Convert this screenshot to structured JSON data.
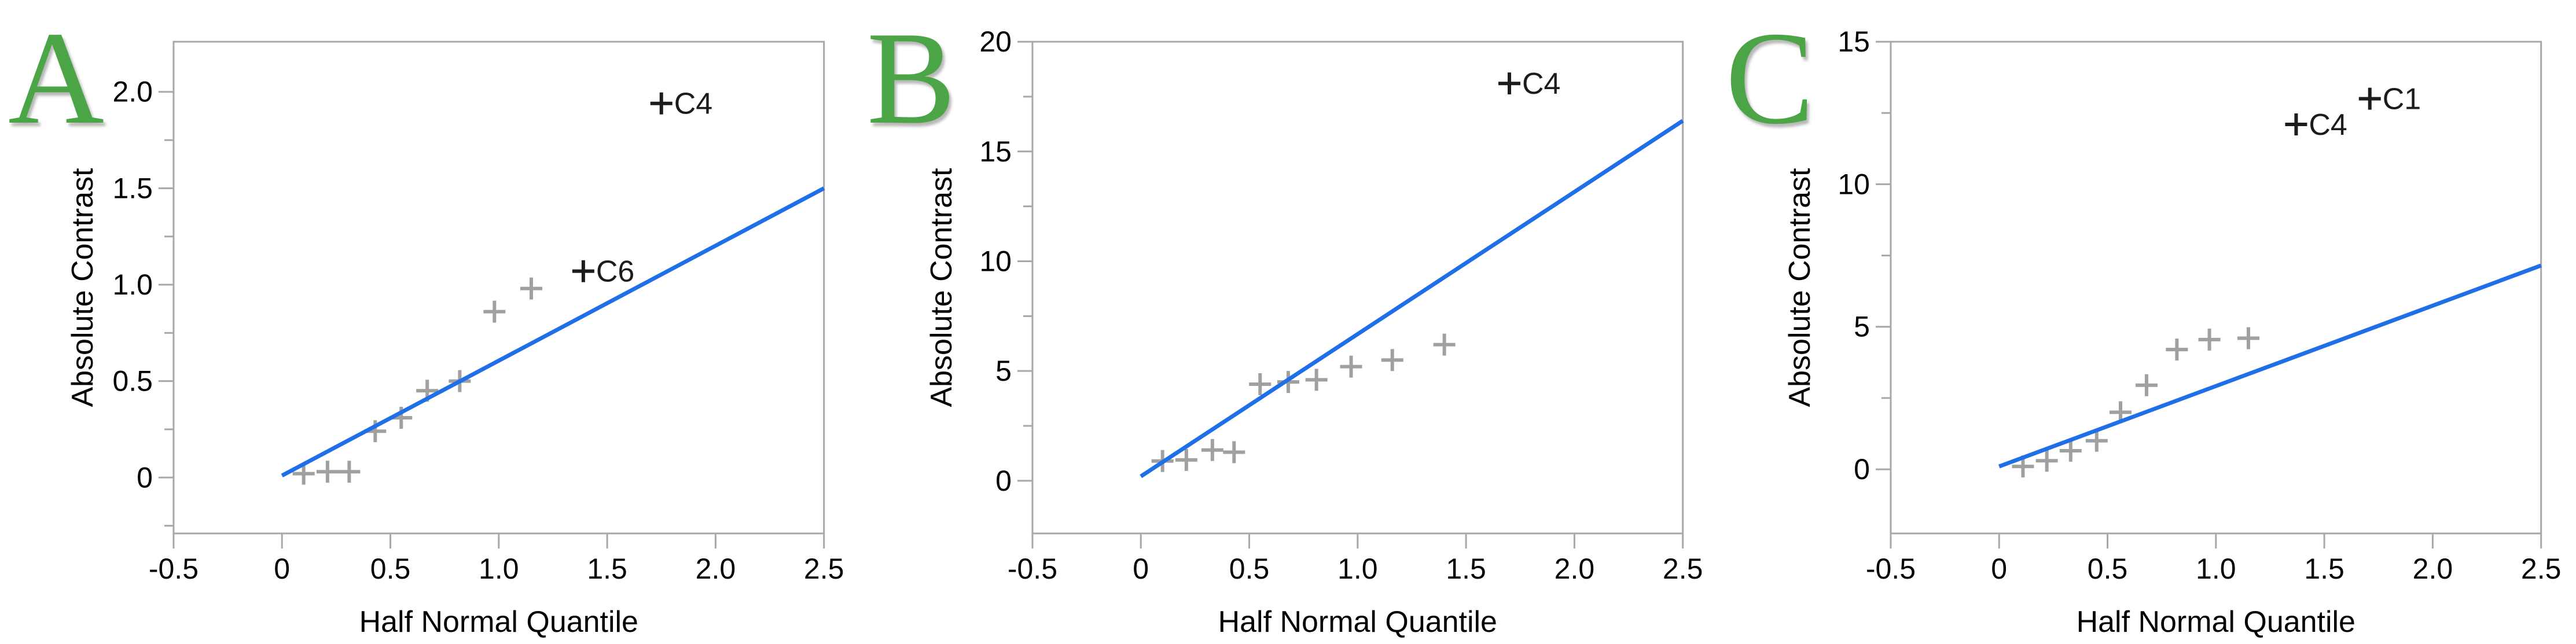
{
  "figure": {
    "colors": {
      "background": "#ffffff",
      "panel_letter_green": "#4ba446",
      "fit_line_blue": "#1e6fe8",
      "marker_gray": "#a0a0a0",
      "marker_labeled_black": "#1c1c1c",
      "axis_gray": "#a8a8a8",
      "tick_text_black": "#000000"
    }
  },
  "chart_data": [
    {
      "type": "scatter",
      "panel_letter": "A",
      "xlabel": "Half Normal Quantile",
      "ylabel": "Absolute Contrast",
      "xlim": [
        -0.5,
        2.5
      ],
      "ylim": [
        -0.29,
        2.26
      ],
      "xticks": [
        -0.5,
        0,
        0.5,
        1.0,
        1.5,
        2.0,
        2.5
      ],
      "xtick_labels": [
        "-0.5",
        "0",
        "0.5",
        "1.0",
        "1.5",
        "2.0",
        "2.5"
      ],
      "yticks": [
        0,
        0.5,
        1.0,
        1.5,
        2.0
      ],
      "ytick_labels": [
        "0",
        "0.5",
        "1.0",
        "1.5",
        "2.0"
      ],
      "yticks_minor": [
        -0.25,
        0.25,
        0.75,
        1.25,
        1.75
      ],
      "grid": "off",
      "points": [
        {
          "x": 0.1,
          "y": 0.02
        },
        {
          "x": 0.21,
          "y": 0.03
        },
        {
          "x": 0.31,
          "y": 0.03
        },
        {
          "x": 0.43,
          "y": 0.24
        },
        {
          "x": 0.55,
          "y": 0.31
        },
        {
          "x": 0.67,
          "y": 0.45
        },
        {
          "x": 0.82,
          "y": 0.5
        },
        {
          "x": 0.98,
          "y": 0.86
        },
        {
          "x": 1.15,
          "y": 0.98
        },
        {
          "x": 1.39,
          "y": 1.07,
          "label": "C6"
        },
        {
          "x": 1.75,
          "y": 1.94,
          "label": "C4"
        }
      ],
      "fit_line": {
        "x1": 0,
        "y1": 0.01,
        "x2": 2.5,
        "y2": 1.5
      }
    },
    {
      "type": "scatter",
      "panel_letter": "B",
      "xlabel": "Half Normal Quantile",
      "ylabel": "Absolute Contrast",
      "xlim": [
        -0.5,
        2.5
      ],
      "ylim": [
        -2.4,
        20
      ],
      "xticks": [
        -0.5,
        0,
        0.5,
        1.0,
        1.5,
        2.0,
        2.5
      ],
      "xtick_labels": [
        "-0.5",
        "0",
        "0.5",
        "1.0",
        "1.5",
        "2.0",
        "2.5"
      ],
      "yticks": [
        0,
        5,
        10,
        15,
        20
      ],
      "ytick_labels": [
        "0",
        "5",
        "10",
        "15",
        "20"
      ],
      "yticks_minor": [
        2.5,
        7.5,
        12.5,
        17.5
      ],
      "grid": "off",
      "points": [
        {
          "x": 0.1,
          "y": 0.9
        },
        {
          "x": 0.21,
          "y": 0.95
        },
        {
          "x": 0.33,
          "y": 1.4
        },
        {
          "x": 0.43,
          "y": 1.3
        },
        {
          "x": 0.55,
          "y": 4.4
        },
        {
          "x": 0.68,
          "y": 4.5
        },
        {
          "x": 0.81,
          "y": 4.6
        },
        {
          "x": 0.97,
          "y": 5.2
        },
        {
          "x": 1.16,
          "y": 5.5
        },
        {
          "x": 1.4,
          "y": 6.2
        },
        {
          "x": 1.7,
          "y": 18.1,
          "label": "C4"
        }
      ],
      "fit_line": {
        "x1": 0,
        "y1": 0.2,
        "x2": 2.5,
        "y2": 16.4
      }
    },
    {
      "type": "scatter",
      "panel_letter": "C",
      "xlabel": "Half Normal Quantile",
      "ylabel": "Absolute Contrast",
      "xlim": [
        -0.5,
        2.5
      ],
      "ylim": [
        -2.25,
        15
      ],
      "xticks": [
        -0.5,
        0,
        0.5,
        1.0,
        1.5,
        2.0,
        2.5
      ],
      "xtick_labels": [
        "-0.5",
        "0",
        "0.5",
        "1.0",
        "1.5",
        "2.0",
        "2.5"
      ],
      "yticks": [
        0,
        5,
        10,
        15
      ],
      "ytick_labels": [
        "0",
        "5",
        "10",
        "15"
      ],
      "yticks_minor": [
        2.5,
        7.5,
        12.5
      ],
      "grid": "off",
      "points": [
        {
          "x": 0.11,
          "y": 0.1
        },
        {
          "x": 0.22,
          "y": 0.3
        },
        {
          "x": 0.33,
          "y": 0.65
        },
        {
          "x": 0.45,
          "y": 1.0
        },
        {
          "x": 0.56,
          "y": 2.0
        },
        {
          "x": 0.68,
          "y": 2.95
        },
        {
          "x": 0.82,
          "y": 4.2
        },
        {
          "x": 0.97,
          "y": 4.55
        },
        {
          "x": 1.15,
          "y": 4.6
        },
        {
          "x": 1.37,
          "y": 12.1,
          "label": "C4"
        },
        {
          "x": 1.71,
          "y": 13.0,
          "label": "C1"
        }
      ],
      "fit_line": {
        "x1": 0,
        "y1": 0.1,
        "x2": 2.5,
        "y2": 7.15
      }
    }
  ]
}
